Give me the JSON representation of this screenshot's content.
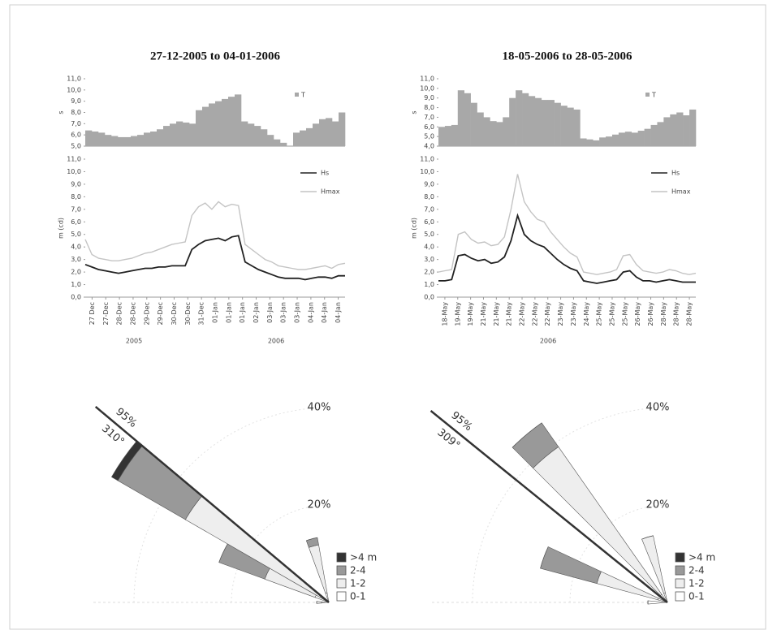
{
  "chart_data": [
    {
      "type": "bar",
      "title": "27-12-2005 to 04-01-2006",
      "ylabel": "s",
      "ylim": [
        5,
        11
      ],
      "yticks": [
        {
          "value": 5,
          "label": "5,0"
        },
        {
          "value": 6,
          "label": "6,0"
        },
        {
          "value": 7,
          "label": "7,0"
        },
        {
          "value": 8,
          "label": "8,0"
        },
        {
          "value": 9,
          "label": "9,0"
        },
        {
          "value": 10,
          "label": "10,0"
        },
        {
          "value": 11,
          "label": "11,0"
        }
      ],
      "series": [
        {
          "name": "T",
          "color": "#a8a8a8",
          "values": [
            6.4,
            6.3,
            6.2,
            6.0,
            5.9,
            5.8,
            5.8,
            5.9,
            6.0,
            6.2,
            6.3,
            6.5,
            6.8,
            7.0,
            7.2,
            7.1,
            7.0,
            8.2,
            8.5,
            8.8,
            9.0,
            9.2,
            9.4,
            9.6,
            7.2,
            7.0,
            6.8,
            6.5,
            6.0,
            5.6,
            5.3,
            5.0,
            6.2,
            6.4,
            6.6,
            7.0,
            7.4,
            7.5,
            7.2,
            8.0
          ]
        }
      ]
    },
    {
      "type": "line",
      "ylabel": "m (cd)",
      "ylim": [
        0,
        11
      ],
      "yticks": [
        {
          "value": 0,
          "label": "0,0"
        },
        {
          "value": 1,
          "label": "1,0"
        },
        {
          "value": 2,
          "label": "2,0"
        },
        {
          "value": 3,
          "label": "3,0"
        },
        {
          "value": 4,
          "label": "4,0"
        },
        {
          "value": 5,
          "label": "5,0"
        },
        {
          "value": 6,
          "label": "6,0"
        },
        {
          "value": 7,
          "label": "7,0"
        },
        {
          "value": 8,
          "label": "8,0"
        },
        {
          "value": 9,
          "label": "9,0"
        },
        {
          "value": 10,
          "label": "10,0"
        },
        {
          "value": 11,
          "label": "11,0"
        }
      ],
      "xticklabels": [
        "27 Dec",
        "27-Dec",
        "28-Dec",
        "28-Dec",
        "29-Dec",
        "29-Dec",
        "30-Dec",
        "30-Dec",
        "31-Dec",
        "01-Jan",
        "01-Jan",
        "01-Jan",
        "02-Jan",
        "03-Jan",
        "03-Jan",
        "03-Jan",
        "04-Jan",
        "04-Jan",
        "04-Jan"
      ],
      "years": [
        "2005",
        "2006"
      ],
      "series": [
        {
          "name": "Hmax",
          "color": "#c4c4c4",
          "values": [
            4.6,
            3.4,
            3.1,
            3.0,
            2.9,
            2.9,
            3.0,
            3.1,
            3.3,
            3.5,
            3.6,
            3.8,
            4.0,
            4.2,
            4.3,
            4.4,
            6.5,
            7.2,
            7.5,
            7.0,
            7.6,
            7.2,
            7.4,
            7.3,
            4.2,
            3.8,
            3.4,
            3.0,
            2.8,
            2.5,
            2.4,
            2.3,
            2.2,
            2.2,
            2.3,
            2.4,
            2.5,
            2.3,
            2.6,
            2.7
          ]
        },
        {
          "name": "Hs",
          "color": "#222222",
          "values": [
            2.6,
            2.4,
            2.2,
            2.1,
            2.0,
            1.9,
            2.0,
            2.1,
            2.2,
            2.3,
            2.3,
            2.4,
            2.4,
            2.5,
            2.5,
            2.5,
            3.8,
            4.2,
            4.5,
            4.6,
            4.7,
            4.5,
            4.8,
            4.9,
            2.8,
            2.5,
            2.2,
            2.0,
            1.8,
            1.6,
            1.5,
            1.5,
            1.5,
            1.4,
            1.5,
            1.6,
            1.6,
            1.5,
            1.7,
            1.7
          ]
        }
      ]
    },
    {
      "type": "rose",
      "directions": [
        270,
        295,
        305,
        345
      ],
      "rticks": [
        {
          "value": 20,
          "label": "20%"
        },
        {
          "value": 40,
          "label": "40%"
        }
      ],
      "mean_direction": {
        "value": 310,
        "label": "310°"
      },
      "percent": {
        "value": 95,
        "label": "95%"
      },
      "series": [
        {
          "name": "0-1",
          "color": "#ffffff",
          "values": [
            1.5,
            3,
            2,
            2
          ]
        },
        {
          "name": "1-2",
          "color": "#eeeeee",
          "values": [
            1,
            11,
            32,
            10
          ]
        },
        {
          "name": "2-4",
          "color": "#999999",
          "values": [
            0,
            10,
            16,
            1.5
          ]
        },
        {
          "name": ">4 m",
          "color": "#333333",
          "values": [
            0,
            0,
            1.5,
            0
          ]
        }
      ]
    },
    {
      "type": "bar",
      "title": "18-05-2006 to 28-05-2006",
      "ylabel": "s",
      "ylim": [
        4,
        11
      ],
      "yticks": [
        {
          "value": 4,
          "label": "4,0"
        },
        {
          "value": 5,
          "label": "5,0"
        },
        {
          "value": 6,
          "label": "6,0"
        },
        {
          "value": 7,
          "label": "7,0"
        },
        {
          "value": 8,
          "label": "8,0"
        },
        {
          "value": 9,
          "label": "9,0"
        },
        {
          "value": 10,
          "label": "10,0"
        },
        {
          "value": 11,
          "label": "11,0"
        }
      ],
      "series": [
        {
          "name": "T",
          "color": "#a8a8a8",
          "values": [
            6.0,
            6.1,
            6.2,
            9.8,
            9.5,
            8.5,
            7.5,
            7.0,
            6.6,
            6.5,
            7.0,
            9.0,
            9.8,
            9.5,
            9.2,
            9.0,
            8.8,
            8.8,
            8.5,
            8.2,
            8.0,
            7.8,
            4.8,
            4.7,
            4.6,
            4.9,
            5.0,
            5.2,
            5.4,
            5.5,
            5.4,
            5.6,
            5.8,
            6.2,
            6.5,
            7.0,
            7.3,
            7.5,
            7.2,
            7.8
          ]
        }
      ]
    },
    {
      "type": "line",
      "ylabel": "m (cd)",
      "ylim": [
        0,
        11
      ],
      "yticks": [
        {
          "value": 0,
          "label": "0,0"
        },
        {
          "value": 1,
          "label": "1,0"
        },
        {
          "value": 2,
          "label": "2,0"
        },
        {
          "value": 3,
          "label": "3,0"
        },
        {
          "value": 4,
          "label": "4,0"
        },
        {
          "value": 5,
          "label": "5,0"
        },
        {
          "value": 6,
          "label": "6,0"
        },
        {
          "value": 7,
          "label": "7,0"
        },
        {
          "value": 8,
          "label": "8,0"
        },
        {
          "value": 9,
          "label": "9,0"
        },
        {
          "value": 10,
          "label": "10,0"
        },
        {
          "value": 11,
          "label": "11,0"
        }
      ],
      "xticklabels": [
        "18-May",
        "19-May",
        "19-May",
        "21-May",
        "21-May",
        "21-May",
        "22-May",
        "22-May",
        "22-May",
        "23-May",
        "23-May",
        "24-May",
        "25-May",
        "25-May",
        "25-May",
        "26-May",
        "26-May",
        "28-May",
        "28-May",
        "28-May"
      ],
      "years": [
        "2006"
      ],
      "series": [
        {
          "name": "Hmax",
          "color": "#c4c4c4",
          "values": [
            2.0,
            2.1,
            2.2,
            5.0,
            5.2,
            4.6,
            4.3,
            4.4,
            4.1,
            4.2,
            4.8,
            7.0,
            9.8,
            7.6,
            6.8,
            6.2,
            6.0,
            5.2,
            4.6,
            4.0,
            3.5,
            3.2,
            2.0,
            1.9,
            1.8,
            1.9,
            2.0,
            2.2,
            3.3,
            3.4,
            2.6,
            2.1,
            2.0,
            1.9,
            2.0,
            2.2,
            2.1,
            1.9,
            1.8,
            1.9
          ]
        },
        {
          "name": "Hs",
          "color": "#222222",
          "values": [
            1.3,
            1.3,
            1.4,
            3.3,
            3.4,
            3.1,
            2.9,
            3.0,
            2.7,
            2.8,
            3.2,
            4.5,
            6.5,
            5.0,
            4.5,
            4.2,
            4.0,
            3.5,
            3.0,
            2.6,
            2.3,
            2.1,
            1.3,
            1.2,
            1.1,
            1.2,
            1.3,
            1.4,
            2.0,
            2.1,
            1.6,
            1.3,
            1.3,
            1.2,
            1.3,
            1.4,
            1.3,
            1.2,
            1.2,
            1.2
          ]
        }
      ]
    },
    {
      "type": "rose",
      "directions": [
        270,
        290,
        320,
        343
      ],
      "rticks": [
        {
          "value": 20,
          "label": "20%"
        },
        {
          "value": 40,
          "label": "40%"
        }
      ],
      "mean_direction": {
        "value": 309,
        "label": "309°"
      },
      "percent": {
        "value": 95,
        "label": "95%"
      },
      "series": [
        {
          "name": "0-1",
          "color": "#ffffff",
          "values": [
            4,
            2,
            2,
            2
          ]
        },
        {
          "name": "1-2",
          "color": "#eeeeee",
          "values": [
            0,
            13,
            37,
            12
          ]
        },
        {
          "name": "2-4",
          "color": "#999999",
          "values": [
            0,
            12,
            6,
            0
          ]
        },
        {
          "name": ">4 m",
          "color": "#333333",
          "values": [
            0,
            0,
            0,
            0
          ]
        }
      ]
    }
  ]
}
